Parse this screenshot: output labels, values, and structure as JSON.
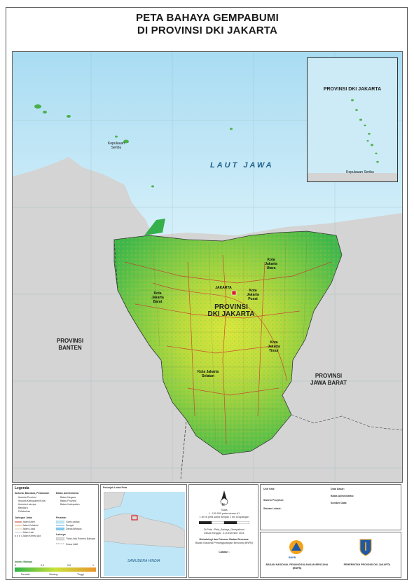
{
  "title": {
    "line1": "PETA BAHAYA GEMPABUMI",
    "line2": "DI PROVINSI DKI JAKARTA"
  },
  "map": {
    "sea_label": "LAUT JAWA",
    "islands_label": "Kepulauan\nSeribu",
    "province_main": "PROVINSI\nDKI JAKARTA",
    "province_west": "PROVINSI\nBANTEN",
    "province_east": "PROVINSI\nJAWA BARAT",
    "cities": {
      "jakarta_utara": "Kota\nJakarta\nUtara",
      "jakarta_barat": "Kota\nJakarta\nBarat",
      "jakarta_pusat": "Kota\nJakarta\nPusat",
      "jakarta_timur": "Kota\nJakarta\nTimur",
      "jakarta_selatan": "Kota Jakarta\nSelatan",
      "jakarta_point": "JAKARTA"
    },
    "inset_title": "PROVINSI DKI JAKARTA",
    "inset_islands": "Kepulauan Seribu",
    "colors": {
      "sea": "#bfe6f7",
      "land_outside": "#d9d9d9",
      "hazard_low": "#2db34a",
      "hazard_mid": "#c9e23a",
      "hazard_high": "#e8962e"
    }
  },
  "footer": {
    "legend_title": "Legenda",
    "legend_groups": {
      "capitals": "Ibukota, Bandara, Pelabuhan",
      "boundaries": "Batas Administrasi",
      "roads": "Jaringan Jalan",
      "waters": "Perairan",
      "other": "Lainnya"
    },
    "legend_items": {
      "capitals": [
        "Ibukota Provinsi",
        "Ibukota Kabupaten/Kota",
        "Ibukota Lainnya",
        "Bandara",
        "Pelabuhan"
      ],
      "boundaries": [
        "Batas Negara",
        "Batas Provinsi",
        "Batas Kabupaten"
      ],
      "roads": [
        "Jalan Arteri",
        "Jalan Kolektor",
        "Jalan Lokal",
        "Jalan Lain",
        "Jalan Kereta Api"
      ],
      "waters": [
        "Garis pantai",
        "Sungai",
        "Danau/Waduk"
      ],
      "other": [
        "Tidak Ada Potensi Bahaya",
        "Sesar Aktif"
      ]
    },
    "hazard_index_title": "Indeks Bahaya",
    "hazard_scale": [
      "0",
      "0,3",
      "0,6",
      "1"
    ],
    "hazard_classes": [
      "Rendah",
      "Sedang",
      "Tinggi"
    ],
    "locator_title": "Petunjuk Letak Peta",
    "locator_sea": "SAMUDERA HINDIA",
    "scale_text": "Skala\n1 : 100.000 pada ukuran A1\n1 cm di peta sama dengan 1 km di lapangan",
    "map_credit": "Di Peta : Peta_Bahaya_Gempabumi\nDibuat Tanggal : 31 Desember 2021",
    "compiler_title": "Metodologi dan Disusun Badan Bencana:",
    "compiler_name": "Badan Nasional Penanggulangan Bencana (BNPB)",
    "notes_title": "Catatan :",
    "info_titles": [
      "Unit Grid:",
      "Sistem Proyeksi:",
      "Satuan Lokasi:",
      "Sumber Data:",
      "Data Dasar:",
      "Batas Administrasi:"
    ],
    "agency_left": "BADAN NASIONAL PENANGGULANGAN BENCANA\n(BNPB)",
    "agency_right": "PEMERINTAH PROVINSI DKI JAKARTA",
    "logo_left": "BNPB"
  }
}
